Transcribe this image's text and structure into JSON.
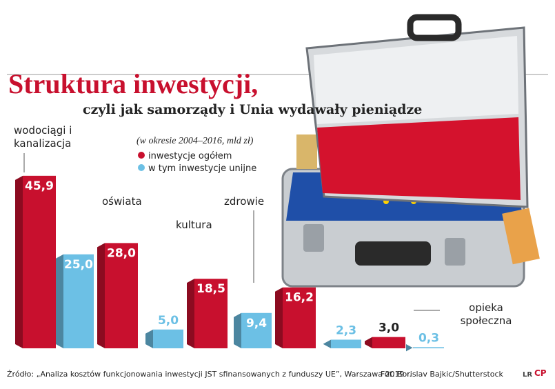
{
  "chart_data": {
    "type": "bar",
    "title": "Struktura inwestycji,",
    "subtitle": "czyli jak samorządy i Unia wydawały pieniądze",
    "note": "(w okresie 2004–2016, mld zł)",
    "categories": [
      "wodociągi i kanalizacja",
      "oświata",
      "kultura",
      "zdrowie",
      "opieka społeczna"
    ],
    "series": [
      {
        "name": "inwestycje ogółem",
        "color": "#c8102e",
        "values": [
          45.9,
          28.0,
          18.5,
          16.2,
          3.0
        ],
        "value_labels": [
          "45,9",
          "28,0",
          "18,5",
          "16,2",
          "3,0"
        ]
      },
      {
        "name": "w tym inwestycje unijne",
        "color": "#6cc0e5",
        "values": [
          25.0,
          5.0,
          9.4,
          2.3,
          0.3
        ],
        "value_labels": [
          "25,0",
          "5,0",
          "9,4",
          "2,3",
          "0,3"
        ]
      }
    ],
    "source": "Źródło: „Analiza kosztów funkcjonowania inwestycji JST sfinansowanych z funduszy UE”, Warszawa 2019 r.",
    "credit": "Fot. Borislav Bajkic/Shutterstock",
    "logo": [
      "LR",
      "CP"
    ]
  }
}
